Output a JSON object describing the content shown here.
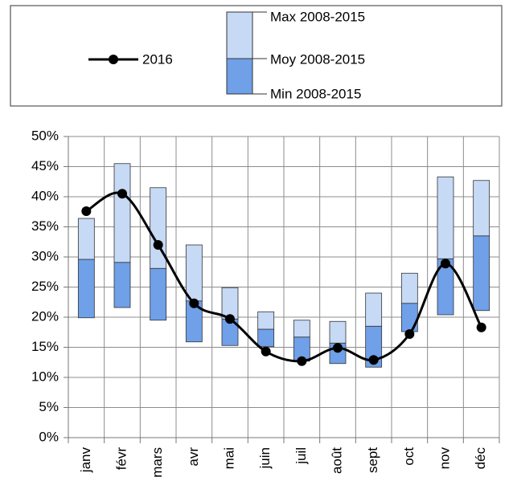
{
  "chart_data": {
    "type": "range-line",
    "categories": [
      "janv",
      "févr",
      "mars",
      "avr",
      "mai",
      "juin",
      "juil",
      "août",
      "sept",
      "oct",
      "nov",
      "déc"
    ],
    "series": [
      {
        "name": "2016",
        "color": "#000000",
        "values": [
          37.6,
          40.5,
          32,
          22.3,
          19.7,
          14.3,
          12.7,
          14.9,
          12.9,
          17.2,
          28.9,
          18.3
        ]
      },
      {
        "name": "Min 2008-2015",
        "values": [
          19.9,
          21.6,
          19.5,
          15.9,
          15.3,
          15.1,
          12.7,
          12.3,
          11.7,
          17.6,
          20.4,
          21.1
        ]
      },
      {
        "name": "Moy 2008-2015",
        "color": "#6fa0e8",
        "values": [
          29.6,
          29.1,
          28.1,
          22.7,
          19.7,
          18,
          16.7,
          15.7,
          18.5,
          22.3,
          29.7,
          33.5
        ]
      },
      {
        "name": "Max 2008-2015",
        "color": "#c6d9f5",
        "values": [
          36.4,
          45.5,
          41.5,
          32,
          24.9,
          20.9,
          19.5,
          19.3,
          24,
          27.3,
          43.3,
          42.7
        ]
      }
    ],
    "ylim": [
      0,
      50
    ],
    "yticks": [
      {
        "value": 0,
        "label": "0%"
      },
      {
        "value": 5,
        "label": "5%"
      },
      {
        "value": 10,
        "label": "10%"
      },
      {
        "value": 15,
        "label": "15%"
      },
      {
        "value": 20,
        "label": "20%"
      },
      {
        "value": 25,
        "label": "25%"
      },
      {
        "value": 30,
        "label": "30%"
      },
      {
        "value": 35,
        "label": "35%"
      },
      {
        "value": 40,
        "label": "40%"
      },
      {
        "value": 45,
        "label": "45%"
      },
      {
        "value": 50,
        "label": "50%"
      }
    ],
    "grid": true
  }
}
